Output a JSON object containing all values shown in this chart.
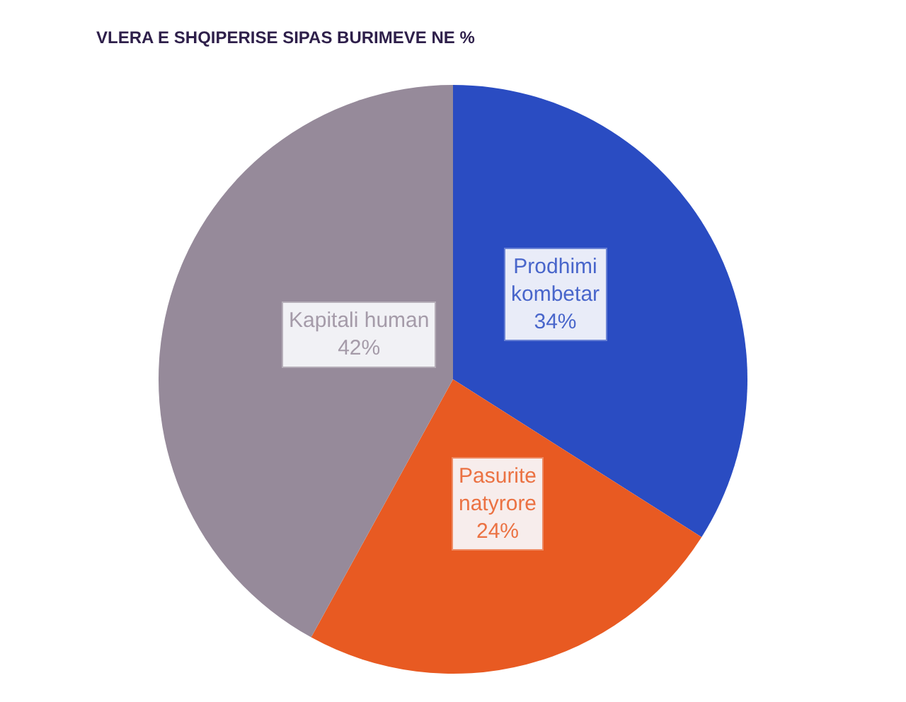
{
  "chart_data": {
    "type": "pie",
    "title": "VLERA E SHQIPERISE SIPAS BURIMEVE NE %",
    "categories": [
      "Prodhimi kombetar",
      "Pasurite natyrore",
      "Kapitali human"
    ],
    "values": [
      34,
      24,
      42
    ],
    "colors": [
      "#2a4cc2",
      "#e85a22",
      "#968a9a"
    ],
    "value_labels": [
      "34%",
      "24%",
      "42%"
    ]
  }
}
